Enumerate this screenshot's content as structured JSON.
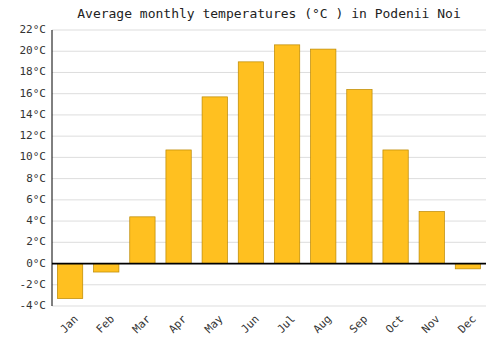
{
  "chart_data": {
    "type": "bar",
    "title": "Average monthly temperatures (°C ) in Podenii Noi",
    "categories": [
      "Jan",
      "Feb",
      "Mar",
      "Apr",
      "May",
      "Jun",
      "Jul",
      "Aug",
      "Sep",
      "Oct",
      "Nov",
      "Dec"
    ],
    "values": [
      -3.3,
      -0.8,
      4.4,
      10.7,
      15.7,
      19.0,
      20.6,
      20.2,
      16.4,
      10.7,
      4.9,
      -0.5
    ],
    "color": "#FFC020",
    "ylim": [
      -4,
      22
    ],
    "yticks": [
      {
        "value": -4,
        "label": "-4°C"
      },
      {
        "value": -2,
        "label": "-2°C"
      },
      {
        "value": 0,
        "label": "0°C"
      },
      {
        "value": 2,
        "label": "2°C"
      },
      {
        "value": 4,
        "label": "4°C"
      },
      {
        "value": 6,
        "label": "6°C"
      },
      {
        "value": 8,
        "label": "8°C"
      },
      {
        "value": 10,
        "label": "10°C"
      },
      {
        "value": 12,
        "label": "12°C"
      },
      {
        "value": 14,
        "label": "14°C"
      },
      {
        "value": 16,
        "label": "16°C"
      },
      {
        "value": 18,
        "label": "18°C"
      },
      {
        "value": 20,
        "label": "20°C"
      },
      {
        "value": 22,
        "label": "22°C"
      }
    ],
    "grid": true
  }
}
